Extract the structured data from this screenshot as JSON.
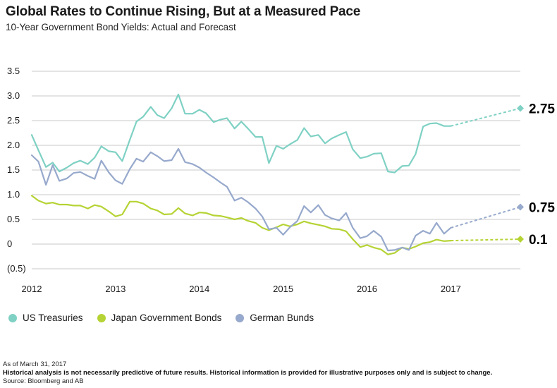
{
  "title": "Global Rates to Continue Rising, But at a Measured Pace",
  "subtitle": "10-Year Government Bond Yields: Actual and Forecast",
  "legend": [
    {
      "label": "US Treasuries",
      "color": "#7fd1c4"
    },
    {
      "label": "Japan Government Bonds",
      "color": "#b5d334"
    },
    {
      "label": "German Bunds",
      "color": "#97a9cc"
    }
  ],
  "footnotes": {
    "asof": "As of March 31, 2017",
    "disclaimer": "Historical analysis is not necessarily predictive of future results. Historical information is provided for illustrative purposes only and is subject to change.",
    "source": "Source: Bloomberg and AB"
  },
  "chart_data": {
    "type": "line",
    "title": "Global Rates to Continue Rising, But at a Measured Pace",
    "subtitle": "10-Year Government Bond Yields: Actual and Forecast",
    "xlabel": "",
    "ylabel": "",
    "x_range": [
      2012.0,
      2017.83
    ],
    "ylim": [
      -0.5,
      3.5
    ],
    "y_ticks": [
      3.5,
      3.0,
      2.5,
      2.0,
      1.5,
      1.0,
      0.5,
      0,
      -0.5
    ],
    "y_tick_labels": [
      "3.5",
      "3.0",
      "2.5",
      "2.0",
      "1.5",
      "1.0",
      "0.5",
      "0",
      "(0.5)"
    ],
    "x_ticks": [
      2012,
      2013,
      2014,
      2015,
      2016,
      2017
    ],
    "x_tick_labels": [
      "2012",
      "2013",
      "2014",
      "2015",
      "2016",
      "2017"
    ],
    "grid": "horizontal",
    "legend_position": "bottom",
    "forecast_style": "dashed",
    "series": [
      {
        "name": "US Treasuries",
        "color": "#7fd1c4",
        "actual": [
          [
            2012.0,
            2.21
          ],
          [
            2012.08,
            1.9
          ],
          [
            2012.17,
            1.56
          ],
          [
            2012.25,
            1.65
          ],
          [
            2012.33,
            1.47
          ],
          [
            2012.42,
            1.55
          ],
          [
            2012.5,
            1.64
          ],
          [
            2012.58,
            1.69
          ],
          [
            2012.67,
            1.62
          ],
          [
            2012.75,
            1.75
          ],
          [
            2012.83,
            1.98
          ],
          [
            2012.92,
            1.88
          ],
          [
            2013.0,
            1.86
          ],
          [
            2013.08,
            1.68
          ],
          [
            2013.17,
            2.11
          ],
          [
            2013.25,
            2.48
          ],
          [
            2013.33,
            2.58
          ],
          [
            2013.42,
            2.78
          ],
          [
            2013.5,
            2.61
          ],
          [
            2013.58,
            2.55
          ],
          [
            2013.67,
            2.75
          ],
          [
            2013.75,
            3.03
          ],
          [
            2013.83,
            2.64
          ],
          [
            2013.92,
            2.64
          ],
          [
            2014.0,
            2.72
          ],
          [
            2014.08,
            2.65
          ],
          [
            2014.17,
            2.47
          ],
          [
            2014.25,
            2.52
          ],
          [
            2014.33,
            2.55
          ],
          [
            2014.42,
            2.34
          ],
          [
            2014.5,
            2.48
          ],
          [
            2014.58,
            2.34
          ],
          [
            2014.67,
            2.17
          ],
          [
            2014.75,
            2.17
          ],
          [
            2014.83,
            1.64
          ],
          [
            2014.92,
            1.99
          ],
          [
            2015.0,
            1.93
          ],
          [
            2015.08,
            2.02
          ],
          [
            2015.17,
            2.11
          ],
          [
            2015.25,
            2.35
          ],
          [
            2015.33,
            2.18
          ],
          [
            2015.42,
            2.21
          ],
          [
            2015.5,
            2.04
          ],
          [
            2015.58,
            2.14
          ],
          [
            2015.67,
            2.21
          ],
          [
            2015.75,
            2.27
          ],
          [
            2015.83,
            1.92
          ],
          [
            2015.92,
            1.74
          ],
          [
            2016.0,
            1.77
          ],
          [
            2016.08,
            1.83
          ],
          [
            2016.17,
            1.84
          ],
          [
            2016.25,
            1.47
          ],
          [
            2016.33,
            1.45
          ],
          [
            2016.42,
            1.58
          ],
          [
            2016.5,
            1.59
          ],
          [
            2016.58,
            1.82
          ],
          [
            2016.67,
            2.38
          ],
          [
            2016.75,
            2.44
          ],
          [
            2016.83,
            2.45
          ],
          [
            2016.92,
            2.39
          ],
          [
            2017.0,
            2.39
          ]
        ],
        "forecast": [
          [
            2017.0,
            2.39
          ],
          [
            2017.83,
            2.75
          ]
        ],
        "end_label": "2.75"
      },
      {
        "name": "Japan Government Bonds",
        "color": "#b5d334",
        "actual": [
          [
            2012.0,
            0.98
          ],
          [
            2012.08,
            0.88
          ],
          [
            2012.17,
            0.82
          ],
          [
            2012.25,
            0.84
          ],
          [
            2012.33,
            0.8
          ],
          [
            2012.42,
            0.8
          ],
          [
            2012.5,
            0.78
          ],
          [
            2012.58,
            0.78
          ],
          [
            2012.67,
            0.72
          ],
          [
            2012.75,
            0.79
          ],
          [
            2012.83,
            0.76
          ],
          [
            2012.92,
            0.66
          ],
          [
            2013.0,
            0.56
          ],
          [
            2013.08,
            0.6
          ],
          [
            2013.17,
            0.86
          ],
          [
            2013.25,
            0.86
          ],
          [
            2013.33,
            0.82
          ],
          [
            2013.42,
            0.72
          ],
          [
            2013.5,
            0.68
          ],
          [
            2013.58,
            0.6
          ],
          [
            2013.67,
            0.61
          ],
          [
            2013.75,
            0.73
          ],
          [
            2013.83,
            0.62
          ],
          [
            2013.92,
            0.58
          ],
          [
            2014.0,
            0.64
          ],
          [
            2014.08,
            0.63
          ],
          [
            2014.17,
            0.58
          ],
          [
            2014.25,
            0.57
          ],
          [
            2014.33,
            0.54
          ],
          [
            2014.42,
            0.5
          ],
          [
            2014.5,
            0.53
          ],
          [
            2014.58,
            0.47
          ],
          [
            2014.67,
            0.43
          ],
          [
            2014.75,
            0.33
          ],
          [
            2014.83,
            0.28
          ],
          [
            2014.92,
            0.34
          ],
          [
            2015.0,
            0.4
          ],
          [
            2015.08,
            0.36
          ],
          [
            2015.17,
            0.4
          ],
          [
            2015.25,
            0.46
          ],
          [
            2015.33,
            0.42
          ],
          [
            2015.42,
            0.39
          ],
          [
            2015.5,
            0.36
          ],
          [
            2015.58,
            0.31
          ],
          [
            2015.67,
            0.3
          ],
          [
            2015.75,
            0.26
          ],
          [
            2015.83,
            0.1
          ],
          [
            2015.92,
            -0.06
          ],
          [
            2016.0,
            -0.02
          ],
          [
            2016.08,
            -0.07
          ],
          [
            2016.17,
            -0.11
          ],
          [
            2016.25,
            -0.21
          ],
          [
            2016.33,
            -0.18
          ],
          [
            2016.42,
            -0.07
          ],
          [
            2016.5,
            -0.1
          ],
          [
            2016.58,
            -0.05
          ],
          [
            2016.67,
            0.02
          ],
          [
            2016.75,
            0.04
          ],
          [
            2016.83,
            0.09
          ],
          [
            2016.92,
            0.06
          ],
          [
            2017.0,
            0.07
          ]
        ],
        "forecast": [
          [
            2017.0,
            0.07
          ],
          [
            2017.83,
            0.1
          ]
        ],
        "end_label": "0.1"
      },
      {
        "name": "German Bunds",
        "color": "#97a9cc",
        "actual": [
          [
            2012.0,
            1.8
          ],
          [
            2012.08,
            1.67
          ],
          [
            2012.17,
            1.2
          ],
          [
            2012.25,
            1.6
          ],
          [
            2012.33,
            1.28
          ],
          [
            2012.42,
            1.33
          ],
          [
            2012.5,
            1.44
          ],
          [
            2012.58,
            1.46
          ],
          [
            2012.67,
            1.38
          ],
          [
            2012.75,
            1.32
          ],
          [
            2012.83,
            1.69
          ],
          [
            2012.92,
            1.45
          ],
          [
            2013.0,
            1.29
          ],
          [
            2013.08,
            1.22
          ],
          [
            2013.17,
            1.52
          ],
          [
            2013.25,
            1.73
          ],
          [
            2013.33,
            1.67
          ],
          [
            2013.42,
            1.86
          ],
          [
            2013.5,
            1.78
          ],
          [
            2013.58,
            1.68
          ],
          [
            2013.67,
            1.7
          ],
          [
            2013.75,
            1.93
          ],
          [
            2013.83,
            1.66
          ],
          [
            2013.92,
            1.62
          ],
          [
            2014.0,
            1.55
          ],
          [
            2014.08,
            1.45
          ],
          [
            2014.17,
            1.35
          ],
          [
            2014.25,
            1.25
          ],
          [
            2014.33,
            1.16
          ],
          [
            2014.42,
            0.88
          ],
          [
            2014.5,
            0.94
          ],
          [
            2014.58,
            0.85
          ],
          [
            2014.67,
            0.72
          ],
          [
            2014.75,
            0.56
          ],
          [
            2014.83,
            0.3
          ],
          [
            2014.92,
            0.33
          ],
          [
            2015.0,
            0.19
          ],
          [
            2015.08,
            0.34
          ],
          [
            2015.17,
            0.47
          ],
          [
            2015.25,
            0.77
          ],
          [
            2015.33,
            0.64
          ],
          [
            2015.42,
            0.79
          ],
          [
            2015.5,
            0.59
          ],
          [
            2015.58,
            0.52
          ],
          [
            2015.67,
            0.48
          ],
          [
            2015.75,
            0.63
          ],
          [
            2015.83,
            0.33
          ],
          [
            2015.92,
            0.12
          ],
          [
            2016.0,
            0.16
          ],
          [
            2016.08,
            0.27
          ],
          [
            2016.17,
            0.15
          ],
          [
            2016.25,
            -0.13
          ],
          [
            2016.33,
            -0.12
          ],
          [
            2016.42,
            -0.07
          ],
          [
            2016.5,
            -0.12
          ],
          [
            2016.58,
            0.17
          ],
          [
            2016.67,
            0.27
          ],
          [
            2016.75,
            0.21
          ],
          [
            2016.83,
            0.43
          ],
          [
            2016.92,
            0.21
          ],
          [
            2017.0,
            0.33
          ]
        ],
        "forecast": [
          [
            2017.0,
            0.33
          ],
          [
            2017.83,
            0.75
          ]
        ],
        "end_label": "0.75"
      }
    ]
  }
}
